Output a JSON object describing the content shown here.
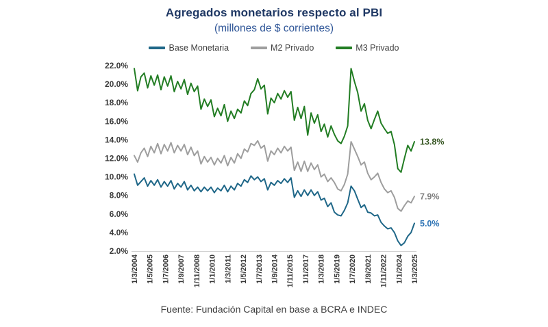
{
  "title": "Agregados monetarios respecto al PBI",
  "subtitle": "(millones de $ corrientes)",
  "footer": "Fuente: Fundación Capital en base a BCRA e INDEC",
  "legend": {
    "items": [
      {
        "label": "Base Monetaria",
        "color": "#1F6788"
      },
      {
        "label": "M2 Privado",
        "color": "#9E9E9E"
      },
      {
        "label": "M3 Privado",
        "color": "#227D23"
      }
    ]
  },
  "chart_data": {
    "type": "line",
    "title": "Agregados monetarios respecto al PBI",
    "subtitle": "(millones de $ corrientes)",
    "grid": false,
    "legend_position": "top",
    "ylim": [
      2.0,
      22.0
    ],
    "y_tick_step": 2.0,
    "y_tick_labels": [
      "22.0%",
      "20.0%",
      "18.0%",
      "16.0%",
      "14.0%",
      "12.0%",
      "10.0%",
      "8.0%",
      "6.0%",
      "4.0%",
      "2.0%"
    ],
    "x_range": [
      "1/3/2004",
      "1/3/2025"
    ],
    "frequency": "quarterly",
    "x_tick_labels": [
      "1/3/2004",
      "1/5/2005",
      "1/7/2006",
      "1/9/2007",
      "1/11/2008",
      "1/1/2010",
      "1/3/2011",
      "1/5/2012",
      "1/7/2013",
      "1/9/2014",
      "1/11/2015",
      "1/1/2017",
      "1/3/2018",
      "1/5/2019",
      "1/7/2020",
      "1/9/2021",
      "1/11/2022",
      "1/1/2024",
      "1/3/2025"
    ],
    "series": [
      {
        "name": "Base Monetaria",
        "color": "#1F6788",
        "end_label": "5.0%",
        "end_label_color": "#2E74B5",
        "values": [
          10.3,
          9.1,
          9.5,
          9.9,
          9.0,
          9.6,
          9.1,
          9.7,
          8.9,
          9.5,
          9.0,
          9.6,
          8.7,
          9.3,
          8.9,
          9.5,
          8.6,
          9.1,
          8.5,
          8.9,
          8.4,
          8.9,
          8.5,
          8.9,
          8.3,
          8.8,
          8.5,
          9.1,
          8.4,
          9.0,
          8.6,
          9.3,
          9.0,
          9.7,
          9.4,
          10.1,
          9.7,
          10.0,
          9.5,
          9.8,
          8.6,
          9.4,
          9.1,
          9.6,
          9.3,
          9.8,
          9.4,
          9.9,
          7.8,
          8.5,
          7.9,
          8.6,
          8.0,
          8.6,
          8.0,
          8.4,
          7.5,
          7.7,
          6.8,
          7.2,
          6.2,
          5.9,
          5.8,
          6.4,
          7.2,
          9.0,
          8.5,
          7.6,
          6.7,
          7.0,
          6.2,
          6.1,
          5.8,
          5.9,
          5.1,
          4.7,
          4.4,
          4.5,
          4.0,
          3.1,
          2.6,
          2.9,
          3.6,
          4.0,
          5.0
        ]
      },
      {
        "name": "M2 Privado",
        "color": "#9E9E9E",
        "end_label": "7.9%",
        "end_label_color": "#7F7F7F",
        "values": [
          12.3,
          11.6,
          12.6,
          13.1,
          12.2,
          13.3,
          12.6,
          13.6,
          12.5,
          13.5,
          12.8,
          13.7,
          12.6,
          13.4,
          12.8,
          13.5,
          12.4,
          13.2,
          12.3,
          12.8,
          11.4,
          12.2,
          11.6,
          12.1,
          11.3,
          12.0,
          11.5,
          12.3,
          11.2,
          12.1,
          11.5,
          12.5,
          12.0,
          13.0,
          12.7,
          13.6,
          13.4,
          13.9,
          13.1,
          13.4,
          11.7,
          12.8,
          12.4,
          13.1,
          12.6,
          13.3,
          12.8,
          13.2,
          10.7,
          11.6,
          10.6,
          11.7,
          10.6,
          11.5,
          10.8,
          11.3,
          10.0,
          10.3,
          9.5,
          9.9,
          9.4,
          8.7,
          8.5,
          9.2,
          10.3,
          13.8,
          13.0,
          12.2,
          11.3,
          11.6,
          10.4,
          9.7,
          10.0,
          10.4,
          9.4,
          8.7,
          8.3,
          8.5,
          7.8,
          6.6,
          6.3,
          6.9,
          7.4,
          7.2,
          7.9
        ]
      },
      {
        "name": "M3 Privado",
        "color": "#227D23",
        "end_label": "13.8%",
        "end_label_color": "#375623",
        "values": [
          21.7,
          19.3,
          20.8,
          21.2,
          19.6,
          20.9,
          19.9,
          21.0,
          19.4,
          20.8,
          19.8,
          20.9,
          19.2,
          20.3,
          19.5,
          20.5,
          18.9,
          20.1,
          19.2,
          19.8,
          17.3,
          18.4,
          17.6,
          18.3,
          16.5,
          17.4,
          16.6,
          17.8,
          16.0,
          17.1,
          16.3,
          17.3,
          16.9,
          18.2,
          17.7,
          19.0,
          19.4,
          20.6,
          19.5,
          19.9,
          16.8,
          18.5,
          18.0,
          19.0,
          18.4,
          19.3,
          18.6,
          19.2,
          16.1,
          17.5,
          16.3,
          17.6,
          14.5,
          16.9,
          15.8,
          16.7,
          14.9,
          15.7,
          14.3,
          15.5,
          14.6,
          13.9,
          13.6,
          14.4,
          15.5,
          21.7,
          20.3,
          19.1,
          17.1,
          17.9,
          16.1,
          15.2,
          16.2,
          17.1,
          15.8,
          15.2,
          14.7,
          14.9,
          13.5,
          10.9,
          10.5,
          12.0,
          13.4,
          12.8,
          13.8
        ]
      }
    ]
  }
}
